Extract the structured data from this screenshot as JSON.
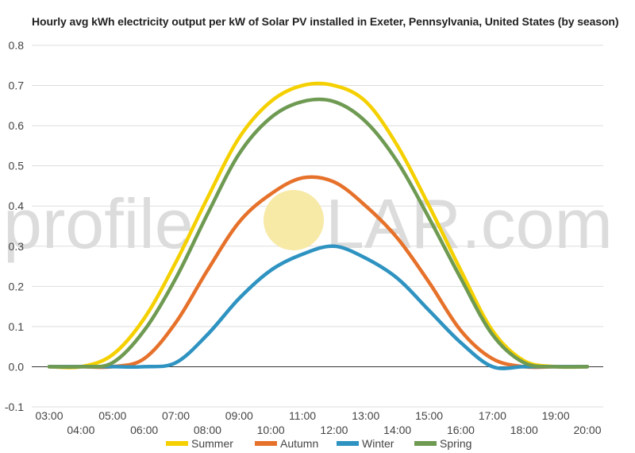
{
  "chart_data": {
    "type": "line",
    "title": "Hourly avg kWh electricity output per kW of Solar PV installed in Exeter, Pennsylvania, United States (by season)",
    "xlabel": "",
    "ylabel": "",
    "ylim": [
      -0.1,
      0.8
    ],
    "yticks": [
      "-0.1",
      "0.0",
      "0.1",
      "0.2",
      "0.3",
      "0.4",
      "0.5",
      "0.6",
      "0.7",
      "0.8"
    ],
    "xticks": [
      "03:00",
      "04:00",
      "05:00",
      "06:00",
      "07:00",
      "08:00",
      "09:00",
      "10:00",
      "11:00",
      "12:00",
      "13:00",
      "14:00",
      "15:00",
      "16:00",
      "17:00",
      "18:00",
      "19:00",
      "20:00"
    ],
    "x": [
      "03:00",
      "04:00",
      "05:00",
      "06:00",
      "07:00",
      "08:00",
      "09:00",
      "10:00",
      "11:00",
      "12:00",
      "13:00",
      "14:00",
      "15:00",
      "16:00",
      "17:00",
      "18:00",
      "19:00",
      "20:00"
    ],
    "grid": true,
    "legend_position": "bottom",
    "series": [
      {
        "name": "Summer",
        "color": "#f5d000",
        "values": [
          0.0,
          0.0,
          0.03,
          0.12,
          0.26,
          0.42,
          0.57,
          0.66,
          0.7,
          0.7,
          0.66,
          0.55,
          0.4,
          0.24,
          0.09,
          0.015,
          0.0,
          0.0
        ]
      },
      {
        "name": "Autumn",
        "color": "#e6712a",
        "values": [
          0.0,
          0.0,
          0.0,
          0.02,
          0.11,
          0.24,
          0.36,
          0.43,
          0.47,
          0.46,
          0.4,
          0.32,
          0.21,
          0.09,
          0.02,
          0.0,
          0.0,
          0.0
        ]
      },
      {
        "name": "Winter",
        "color": "#2e93c1",
        "values": [
          0.0,
          0.0,
          0.0,
          0.0,
          0.01,
          0.08,
          0.17,
          0.24,
          0.28,
          0.3,
          0.27,
          0.22,
          0.14,
          0.06,
          0.0,
          0.0,
          0.0,
          0.0
        ]
      },
      {
        "name": "Spring",
        "color": "#6e9a52",
        "values": [
          0.0,
          0.0,
          0.01,
          0.09,
          0.22,
          0.38,
          0.53,
          0.62,
          0.66,
          0.66,
          0.61,
          0.51,
          0.37,
          0.22,
          0.08,
          0.01,
          0.0,
          0.0
        ]
      }
    ]
  },
  "watermark": {
    "left": "profile",
    "right": "LAR.com",
    "sun_color": "#f7e9a6"
  }
}
